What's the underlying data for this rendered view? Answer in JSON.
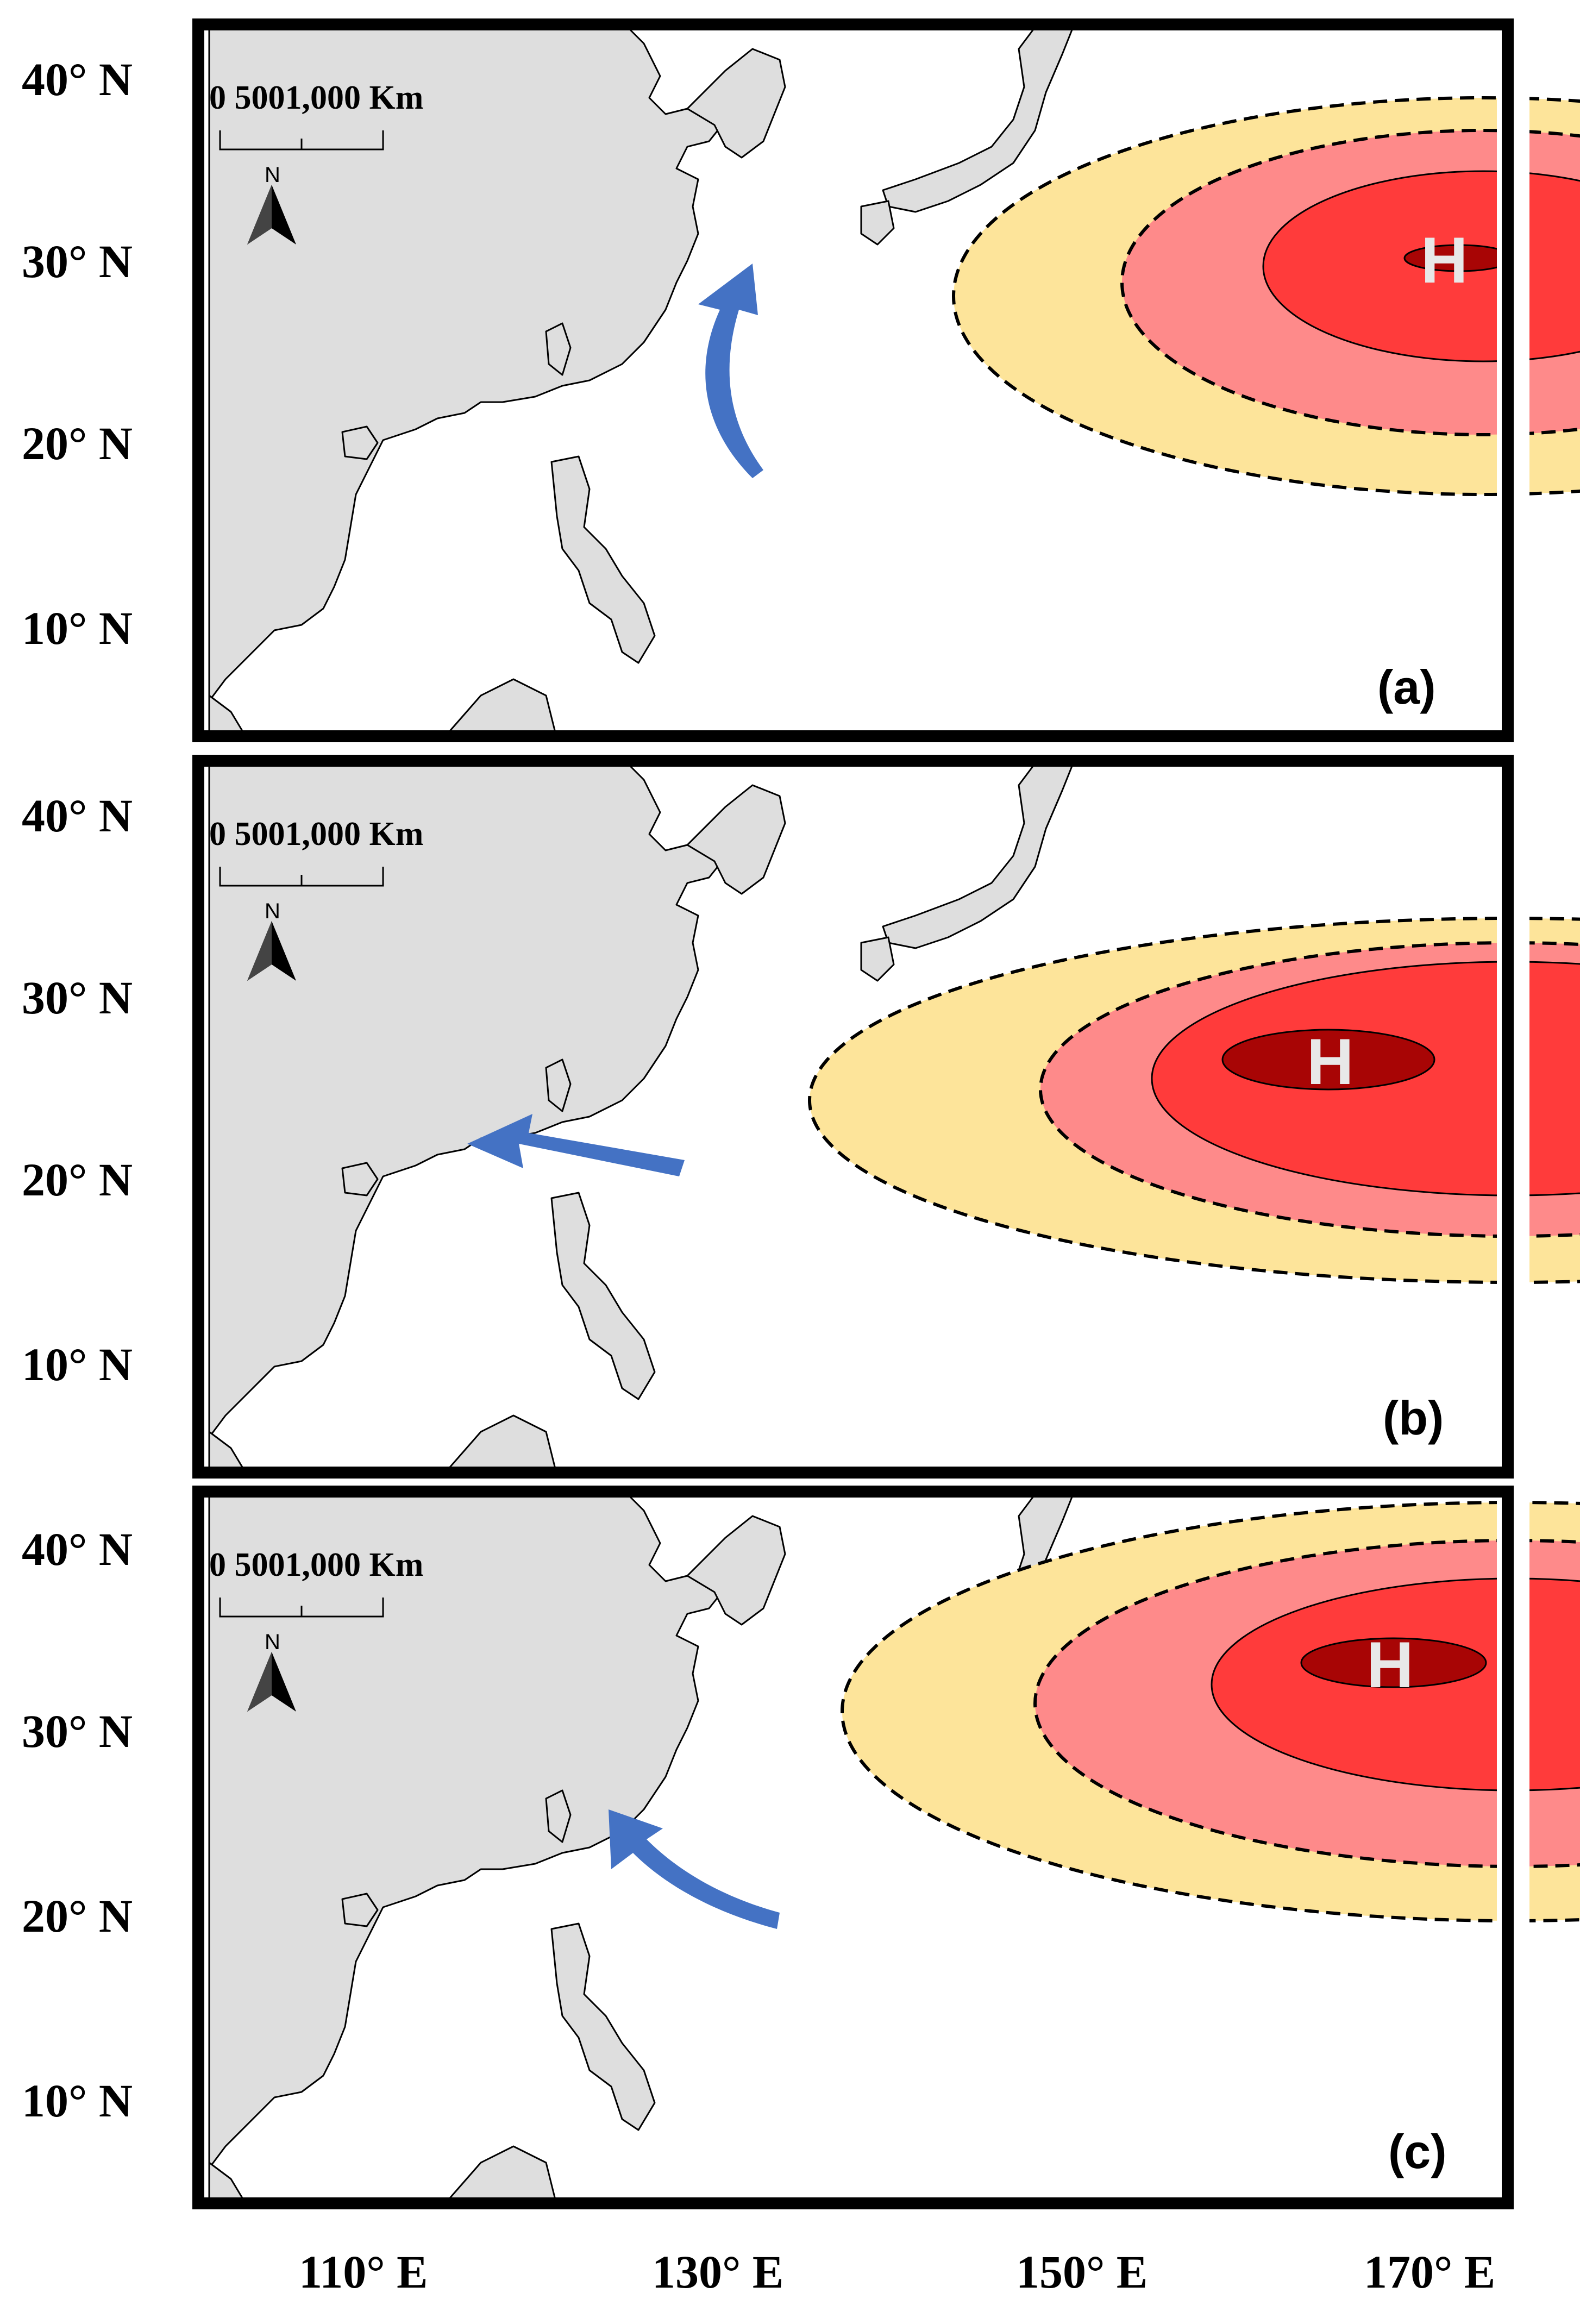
{
  "figure": {
    "latitude_labels": [
      "40° N",
      "30° N",
      "20° N",
      "10° N"
    ],
    "longitude_labels": [
      "110° E",
      "130° E",
      "150° E",
      "170° E"
    ],
    "scale_bar": {
      "text": "0  5001,000 Km"
    },
    "north_arrow": {
      "letter": "N",
      "icon": "north-arrow-icon"
    },
    "high_pressure_symbol": "H",
    "colors": {
      "outer_ring": "#fde49a",
      "middle_ring": "#fe8a8a",
      "inner_ring": "#ff3b3b",
      "core": "#a80505",
      "flow_arrow": "#4472c4",
      "land": "#dedede",
      "frame": "#000000"
    },
    "panels": [
      {
        "id": "a",
        "label": "(a)",
        "flow_direction": "northward recurving toward Japan"
      },
      {
        "id": "b",
        "label": "(b)",
        "flow_direction": "westward toward South China"
      },
      {
        "id": "c",
        "label": "(c)",
        "flow_direction": "northwestward toward Taiwan"
      }
    ]
  }
}
